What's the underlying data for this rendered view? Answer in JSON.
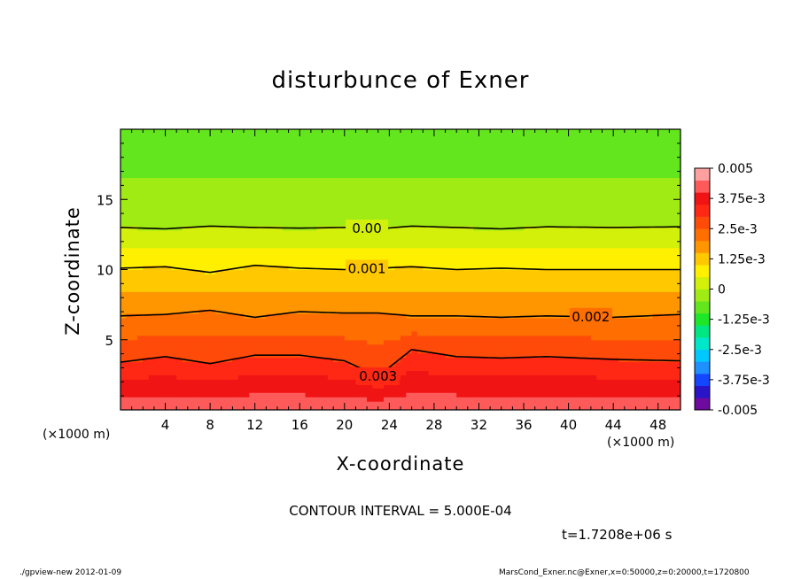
{
  "chart_data": {
    "type": "heatmap",
    "title": "disturbunce of Exner",
    "xlabel": "X-coordinate",
    "ylabel": "Z-coordinate",
    "x_unit": "(×1000 m)",
    "xlim": [
      0,
      50
    ],
    "ylim": [
      0,
      20
    ],
    "x_ticks": [
      4,
      8,
      12,
      16,
      20,
      24,
      28,
      32,
      36,
      40,
      44,
      48
    ],
    "x_tick_labels": [
      "4",
      "8",
      "12",
      "16",
      "20",
      "24",
      "28",
      "32",
      "36",
      "40",
      "44",
      "48"
    ],
    "y_ticks": [
      5,
      10,
      15
    ],
    "y_tick_labels": [
      "5",
      "10",
      "15"
    ],
    "colorbar": {
      "min": -0.005,
      "max": 0.005,
      "labels": [
        "0.005",
        "3.75e-3",
        "2.5e-3",
        "1.25e-3",
        "0",
        "-1.25e-3",
        "-2.5e-3",
        "-3.75e-3",
        "-0.005"
      ],
      "label_values": [
        0.005,
        0.00375,
        0.0025,
        0.00125,
        0,
        -0.00125,
        -0.0025,
        -0.00375,
        -0.005
      ],
      "colors": [
        "#6e0aa0",
        "#2a14c8",
        "#1446ff",
        "#1e90ff",
        "#00c8ff",
        "#00e6c8",
        "#00e682",
        "#1ee628",
        "#64e61e",
        "#a0eb14",
        "#d2f00a",
        "#fff000",
        "#ffc800",
        "#ff9600",
        "#ff6e00",
        "#ff4b0a",
        "#ff2814",
        "#f01414",
        "#ff5a5a",
        "#ffa0a0"
      ]
    },
    "contours": [
      {
        "label": "0.00",
        "level": 0.0,
        "z": [
          13.0,
          12.9,
          13.1,
          13.0,
          12.95,
          13.0,
          12.9,
          13.1,
          13.0,
          12.9,
          13.05,
          13.0,
          13.05
        ]
      },
      {
        "label": "0.001",
        "level": 0.001,
        "z": [
          10.1,
          10.2,
          9.8,
          10.3,
          10.1,
          10.0,
          10.1,
          10.2,
          10.0,
          10.1,
          10.0,
          10.0,
          10.0
        ]
      },
      {
        "label": "0.002",
        "level": 0.002,
        "z": [
          6.7,
          6.8,
          7.1,
          6.6,
          7.0,
          6.9,
          6.9,
          6.7,
          6.7,
          6.6,
          6.7,
          6.6,
          6.8
        ]
      },
      {
        "label": "0.003",
        "level": 0.003,
        "z": [
          3.4,
          3.8,
          3.3,
          3.9,
          3.9,
          3.5,
          2.4,
          4.3,
          3.8,
          3.7,
          3.8,
          3.6,
          3.5
        ]
      }
    ],
    "contour_x": [
      0,
      4,
      8,
      12,
      16,
      20,
      23,
      26,
      30,
      34,
      38,
      44,
      50
    ],
    "contour_interval": "CONTOUR INTERVAL = 5.000E-04",
    "time": "t=1.7208e+06 s"
  },
  "labels": {
    "title": "disturbunce of Exner",
    "xlabel": "X-coordinate",
    "ylabel": "Z-coordinate",
    "xunit_left": "(×1000 m)",
    "xunit_right": "(×1000 m)",
    "contour_interval": "CONTOUR INTERVAL = 5.000E-04",
    "time": "t=1.7208e+06 s",
    "footer_left": "./gpview-new   2012-01-09",
    "footer_right": "MarsCond_Exner.nc@Exner,x=0:50000,z=0:20000,t=1720800"
  }
}
